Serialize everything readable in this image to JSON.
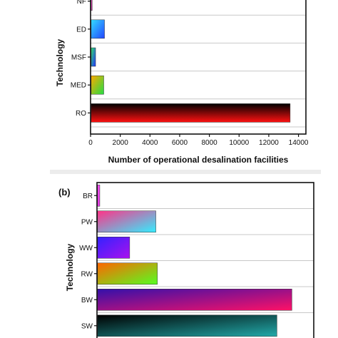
{
  "chart_data": [
    {
      "panel_label": "",
      "type": "bar",
      "orientation": "horizontal",
      "categories": [
        "NF",
        "ED",
        "MSF",
        "MED",
        "RO"
      ],
      "values": [
        60,
        900,
        300,
        850,
        13400
      ],
      "ylabel": "Technology",
      "xlabel": "Number of operational desalination facilities",
      "xlim": [
        0,
        14500
      ],
      "xticks": [
        0,
        2000,
        4000,
        6000,
        8000,
        10000,
        12000,
        14000
      ],
      "xtick_labels": [
        "0",
        "2000",
        "4000",
        "6000",
        "8000",
        "10000",
        "12000",
        "14000"
      ],
      "grid": true,
      "bar_colors": [
        [
          "#ff66cc",
          "#cc33aa"
        ],
        [
          "#33ddff",
          "#2244ff"
        ],
        [
          "#33dd66",
          "#2233ff"
        ],
        [
          "#ffaa00",
          "#22dd44"
        ],
        [
          "#000000",
          "#ff1111"
        ]
      ]
    },
    {
      "panel_label": "(b)",
      "type": "bar",
      "orientation": "horizontal",
      "categories": [
        "BR",
        "PW",
        "WW",
        "RW",
        "BW",
        "SW"
      ],
      "values": [
        150,
        3900,
        2150,
        4000,
        13000,
        12000
      ],
      "ylabel": "Technology",
      "xlabel": "",
      "xlim": [
        0,
        14500
      ],
      "grid": true,
      "bar_colors": [
        [
          "#ff55ff",
          "#dd33dd"
        ],
        [
          "#ff3388",
          "#33eeff"
        ],
        [
          "#3322ff",
          "#aa11ee"
        ],
        [
          "#ff6600",
          "#55ff22"
        ],
        [
          "#3311aa",
          "#ff1166"
        ],
        [
          "#000000",
          "#22aaaa"
        ]
      ]
    }
  ]
}
